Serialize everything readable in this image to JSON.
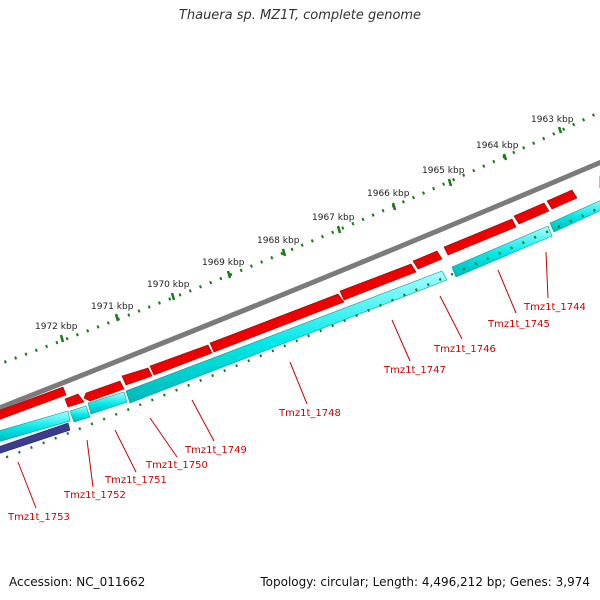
{
  "title": "Thauera sp. MZ1T, complete genome",
  "footer": {
    "accession": "Accession: NC_011662",
    "summary": "Topology: circular; Length: 4,496,212 bp; Genes: 3,974"
  },
  "colors": {
    "backbone": "#7b7b7b",
    "forward_gene": "#ee0000",
    "reverse_gene": "#00e8e8",
    "extra_track": "#3c3c8c",
    "tick": "#1a7a1a",
    "label": "#cc0000",
    "scale_text": "#222222"
  },
  "scale_labels": [
    "1963 kbp",
    "1964 kbp",
    "1965 kbp",
    "1966 kbp",
    "1967 kbp",
    "1968 kbp",
    "1969 kbp",
    "1970 kbp",
    "1971 kbp",
    "1972 kbp"
  ],
  "gene_labels": [
    "Tmz1t_1744",
    "Tmz1t_1745",
    "Tmz1t_1746",
    "Tmz1t_1747",
    "Tmz1t_1748",
    "Tmz1t_1749",
    "Tmz1t_1750",
    "Tmz1t_1751",
    "Tmz1t_1752",
    "Tmz1t_1753"
  ]
}
